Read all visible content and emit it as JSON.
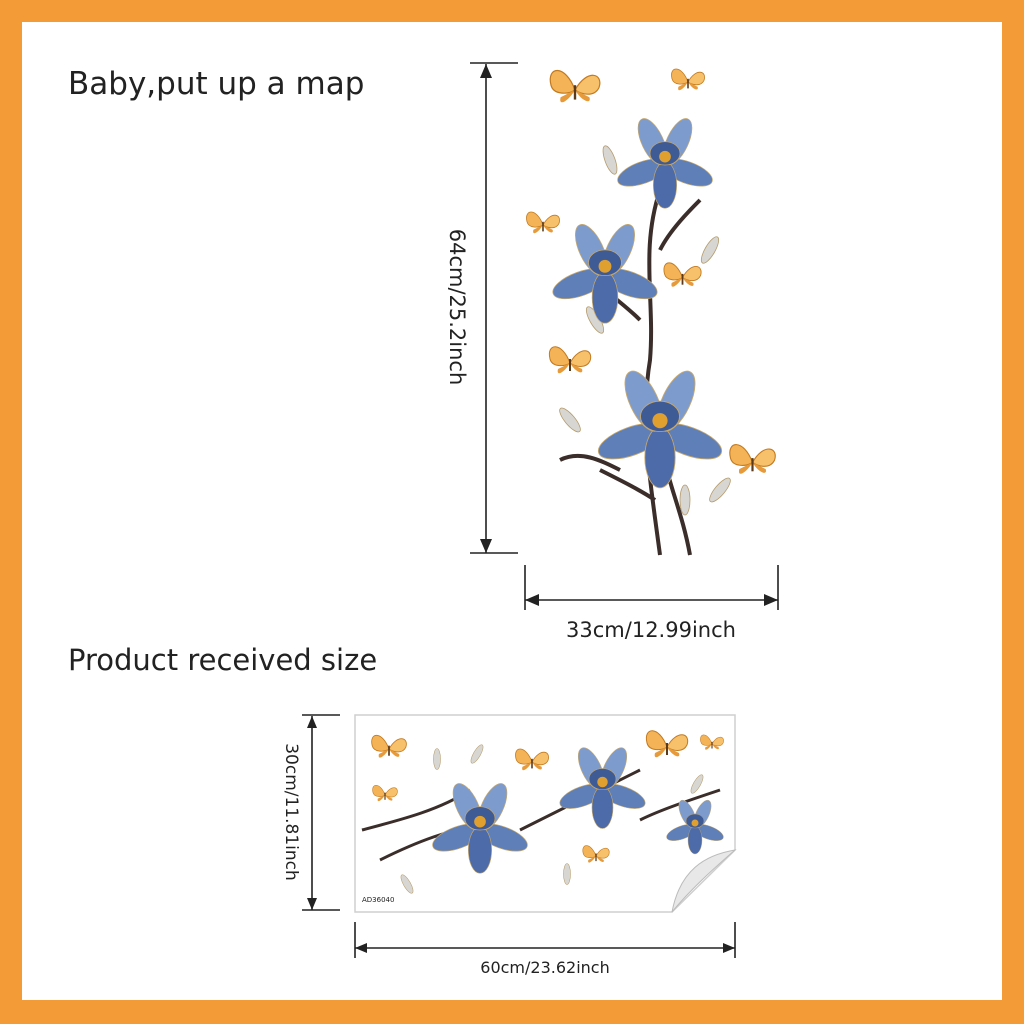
{
  "top": {
    "caption": "Baby,put up a map",
    "height_label": "64cm/25.2inch",
    "width_label": "33cm/12.99inch"
  },
  "bottom": {
    "caption": "Product received size",
    "height_label": "30cm/11.81inch",
    "width_label": "60cm/23.62inch",
    "code": "AD36040"
  }
}
